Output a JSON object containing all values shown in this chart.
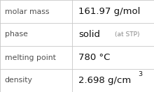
{
  "rows": [
    {
      "label": "molar mass",
      "value_main": "161.97 g/mol",
      "superscript": null,
      "note": null
    },
    {
      "label": "phase",
      "value_main": "solid",
      "superscript": null,
      "note": "(at STP)"
    },
    {
      "label": "melting point",
      "value_main": "780 °C",
      "superscript": null,
      "note": null
    },
    {
      "label": "density",
      "value_main": "2.698 g/cm",
      "superscript": "3",
      "note": null
    }
  ],
  "col_split": 0.47,
  "background": "#ffffff",
  "border_color": "#c8c8c8",
  "label_color": "#505050",
  "value_color": "#111111",
  "note_color": "#888888",
  "label_fontsize": 7.8,
  "value_fontsize": 9.5,
  "note_fontsize": 6.5,
  "super_fontsize": 6.8
}
